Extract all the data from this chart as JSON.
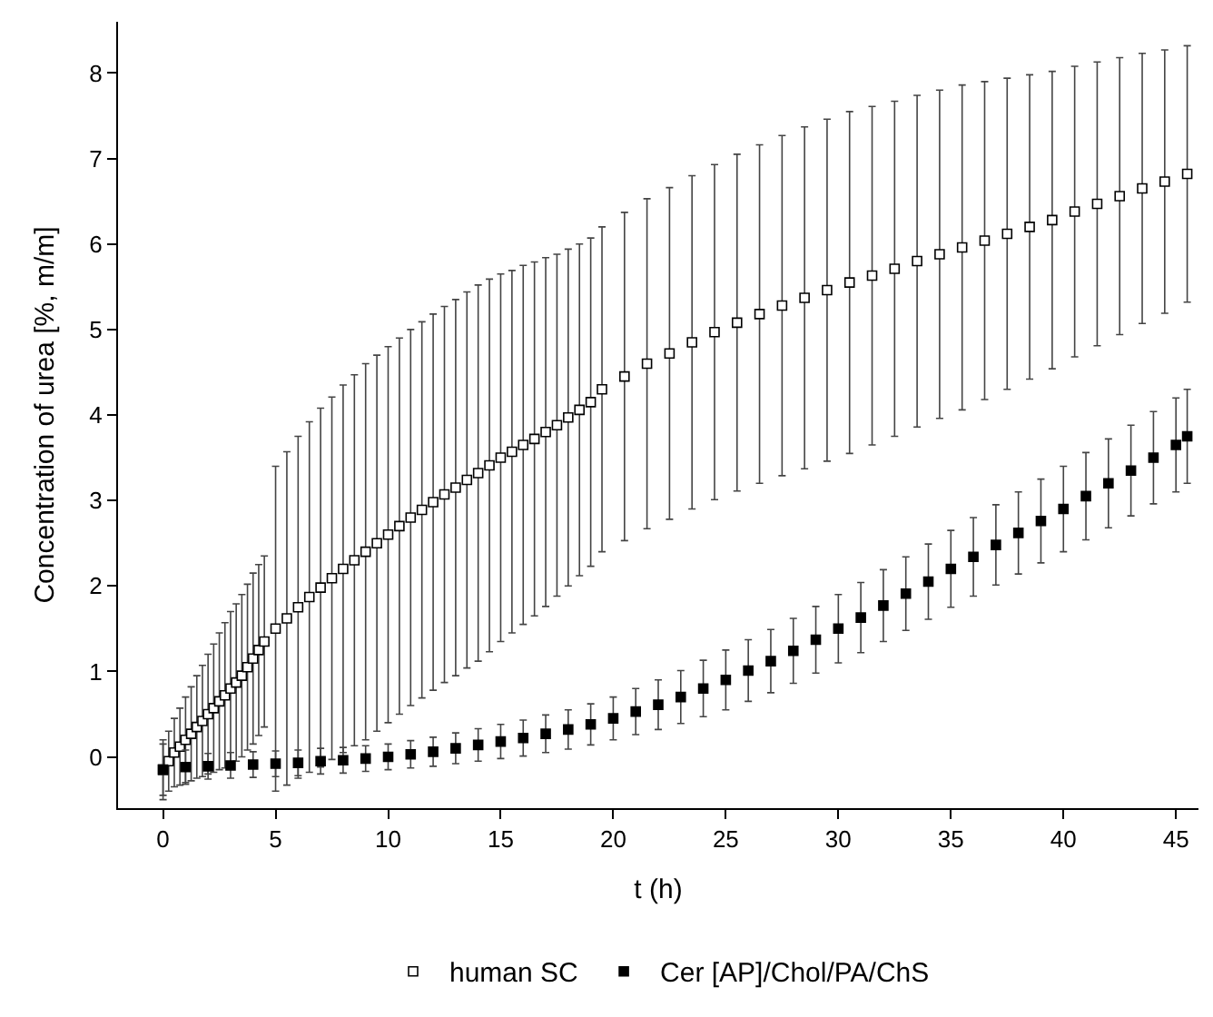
{
  "chart_data": {
    "type": "scatter",
    "xlabel": "t (h)",
    "ylabel": "Concentration of urea [%, m/m]",
    "xlim": [
      -2,
      46
    ],
    "xticks": [
      0,
      5,
      10,
      15,
      20,
      25,
      30,
      35,
      40,
      45
    ],
    "ylim": [
      -0.6,
      8.6
    ],
    "yticks": [
      0,
      1,
      2,
      3,
      4,
      5,
      6,
      7,
      8
    ],
    "legend": "bottom",
    "marker": "square",
    "series": [
      {
        "name": "human SC",
        "color": "#ffffff",
        "x": [
          0,
          0.25,
          0.5,
          0.75,
          1,
          1.25,
          1.5,
          1.75,
          2,
          2.25,
          2.5,
          2.75,
          3,
          3.25,
          3.5,
          3.75,
          4,
          4.25,
          4.5,
          5,
          5.5,
          6,
          6.5,
          7,
          7.5,
          8,
          8.5,
          9,
          9.5,
          10,
          10.5,
          11,
          11.5,
          12,
          12.5,
          13,
          13.5,
          14,
          14.5,
          15,
          15.5,
          16,
          16.5,
          17,
          17.5,
          18,
          18.5,
          19,
          19.5,
          20.5,
          21.5,
          22.5,
          23.5,
          24.5,
          25.5,
          26.5,
          27.5,
          28.5,
          29.5,
          30.5,
          31.5,
          32.5,
          33.5,
          34.5,
          35.5,
          36.5,
          37.5,
          38.5,
          39.5,
          40.5,
          41.5,
          42.5,
          43.5,
          44.5,
          45.5
        ],
        "values": [
          -0.15,
          -0.05,
          0.05,
          0.12,
          0.2,
          0.27,
          0.35,
          0.42,
          0.5,
          0.57,
          0.65,
          0.72,
          0.8,
          0.87,
          0.95,
          1.05,
          1.15,
          1.25,
          1.35,
          1.5,
          1.62,
          1.75,
          1.87,
          1.98,
          2.09,
          2.2,
          2.3,
          2.4,
          2.5,
          2.6,
          2.7,
          2.8,
          2.89,
          2.98,
          3.07,
          3.15,
          3.24,
          3.32,
          3.41,
          3.5,
          3.57,
          3.65,
          3.72,
          3.8,
          3.88,
          3.97,
          4.06,
          4.15,
          4.3,
          4.45,
          4.6,
          4.72,
          4.85,
          4.97,
          5.08,
          5.18,
          5.28,
          5.37,
          5.46,
          5.55,
          5.63,
          5.71,
          5.8,
          5.88,
          5.96,
          6.04,
          6.12,
          6.2,
          6.28,
          6.38,
          6.47,
          6.56,
          6.65,
          6.73,
          6.82
        ],
        "errors": [
          0.3,
          0.35,
          0.4,
          0.45,
          0.5,
          0.55,
          0.6,
          0.65,
          0.7,
          0.75,
          0.8,
          0.85,
          0.9,
          0.92,
          0.95,
          0.97,
          1.0,
          1.0,
          1.0,
          1.9,
          1.95,
          2.0,
          2.05,
          2.1,
          2.12,
          2.15,
          2.17,
          2.2,
          2.2,
          2.2,
          2.2,
          2.2,
          2.2,
          2.2,
          2.2,
          2.2,
          2.2,
          2.2,
          2.18,
          2.15,
          2.12,
          2.1,
          2.07,
          2.04,
          2.0,
          1.97,
          1.94,
          1.92,
          1.9,
          1.92,
          1.93,
          1.94,
          1.95,
          1.96,
          1.97,
          1.98,
          1.99,
          2.0,
          2.0,
          2.0,
          1.98,
          1.96,
          1.94,
          1.92,
          1.9,
          1.86,
          1.82,
          1.78,
          1.74,
          1.7,
          1.66,
          1.62,
          1.58,
          1.54,
          1.5
        ]
      },
      {
        "name": "Cer [AP]/Chol/PA/ChS",
        "color": "#000000",
        "x": [
          0,
          1,
          2,
          3,
          4,
          5,
          6,
          7,
          8,
          9,
          10,
          11,
          12,
          13,
          14,
          15,
          16,
          17,
          18,
          19,
          20,
          21,
          22,
          23,
          24,
          25,
          26,
          27,
          28,
          29,
          30,
          31,
          32,
          33,
          34,
          35,
          36,
          37,
          38,
          39,
          40,
          41,
          42,
          43,
          44,
          45,
          45.5
        ],
        "values": [
          -0.15,
          -0.12,
          -0.11,
          -0.1,
          -0.09,
          -0.08,
          -0.07,
          -0.05,
          -0.04,
          -0.02,
          0.0,
          0.03,
          0.06,
          0.1,
          0.14,
          0.18,
          0.22,
          0.27,
          0.32,
          0.38,
          0.45,
          0.53,
          0.61,
          0.7,
          0.8,
          0.9,
          1.01,
          1.12,
          1.24,
          1.37,
          1.5,
          1.63,
          1.77,
          1.91,
          2.05,
          2.2,
          2.34,
          2.48,
          2.62,
          2.76,
          2.9,
          3.05,
          3.2,
          3.35,
          3.5,
          3.65,
          3.75
        ],
        "errors": [
          0.35,
          0.2,
          0.15,
          0.15,
          0.15,
          0.15,
          0.15,
          0.15,
          0.15,
          0.15,
          0.15,
          0.16,
          0.17,
          0.18,
          0.19,
          0.2,
          0.21,
          0.22,
          0.23,
          0.24,
          0.25,
          0.27,
          0.29,
          0.31,
          0.33,
          0.35,
          0.36,
          0.37,
          0.38,
          0.39,
          0.4,
          0.41,
          0.42,
          0.43,
          0.44,
          0.45,
          0.46,
          0.47,
          0.48,
          0.49,
          0.5,
          0.51,
          0.52,
          0.53,
          0.54,
          0.55,
          0.55
        ]
      }
    ]
  }
}
